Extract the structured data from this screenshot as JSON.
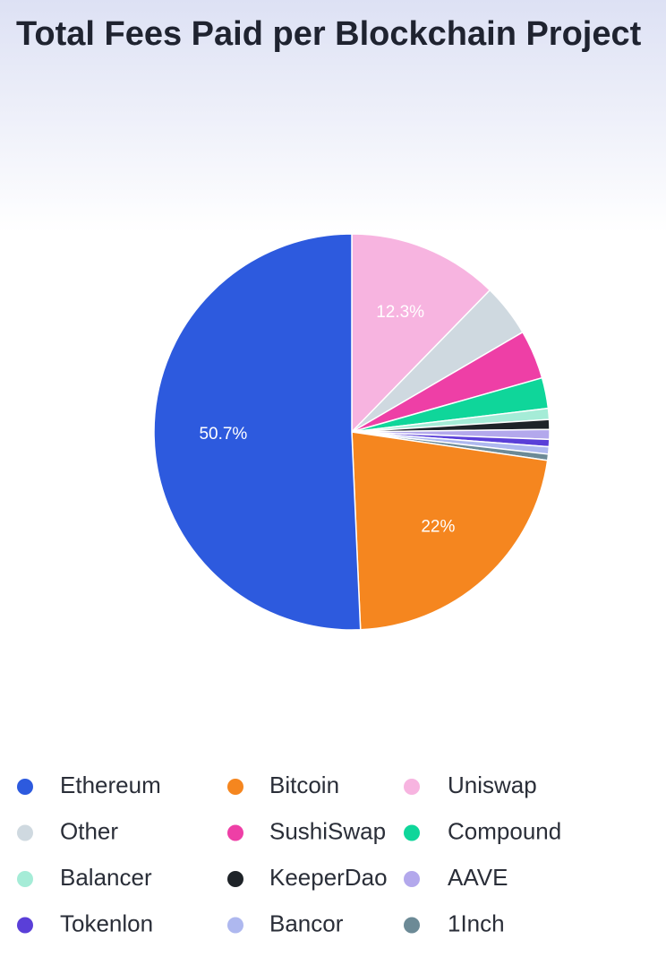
{
  "chart_data": {
    "type": "pie",
    "title": "Total Fees Paid per Blockchain Project",
    "categories": [
      "Ethereum",
      "Bitcoin",
      "Uniswap",
      "Other",
      "SushiSwap",
      "Compound",
      "Balancer",
      "KeeperDao",
      "AAVE",
      "Tokenlon",
      "Bancor",
      "1Inch"
    ],
    "values": [
      50.7,
      22,
      12.3,
      4.3,
      4,
      2.5,
      0.9,
      0.8,
      0.8,
      0.6,
      0.6,
      0.5
    ],
    "value_labels": [
      "50.7%",
      "22%",
      "12.3%",
      null,
      null,
      null,
      null,
      null,
      null,
      null,
      null,
      null
    ],
    "colors": [
      "#2d5ade",
      "#f5861f",
      "#f7b4e0",
      "#cfd9e0",
      "#ee3fa6",
      "#0fd69a",
      "#a5ecd7",
      "#1e2328",
      "#b3a8ec",
      "#5a3fd8",
      "#aeb8ef",
      "#6c8a96"
    ]
  }
}
